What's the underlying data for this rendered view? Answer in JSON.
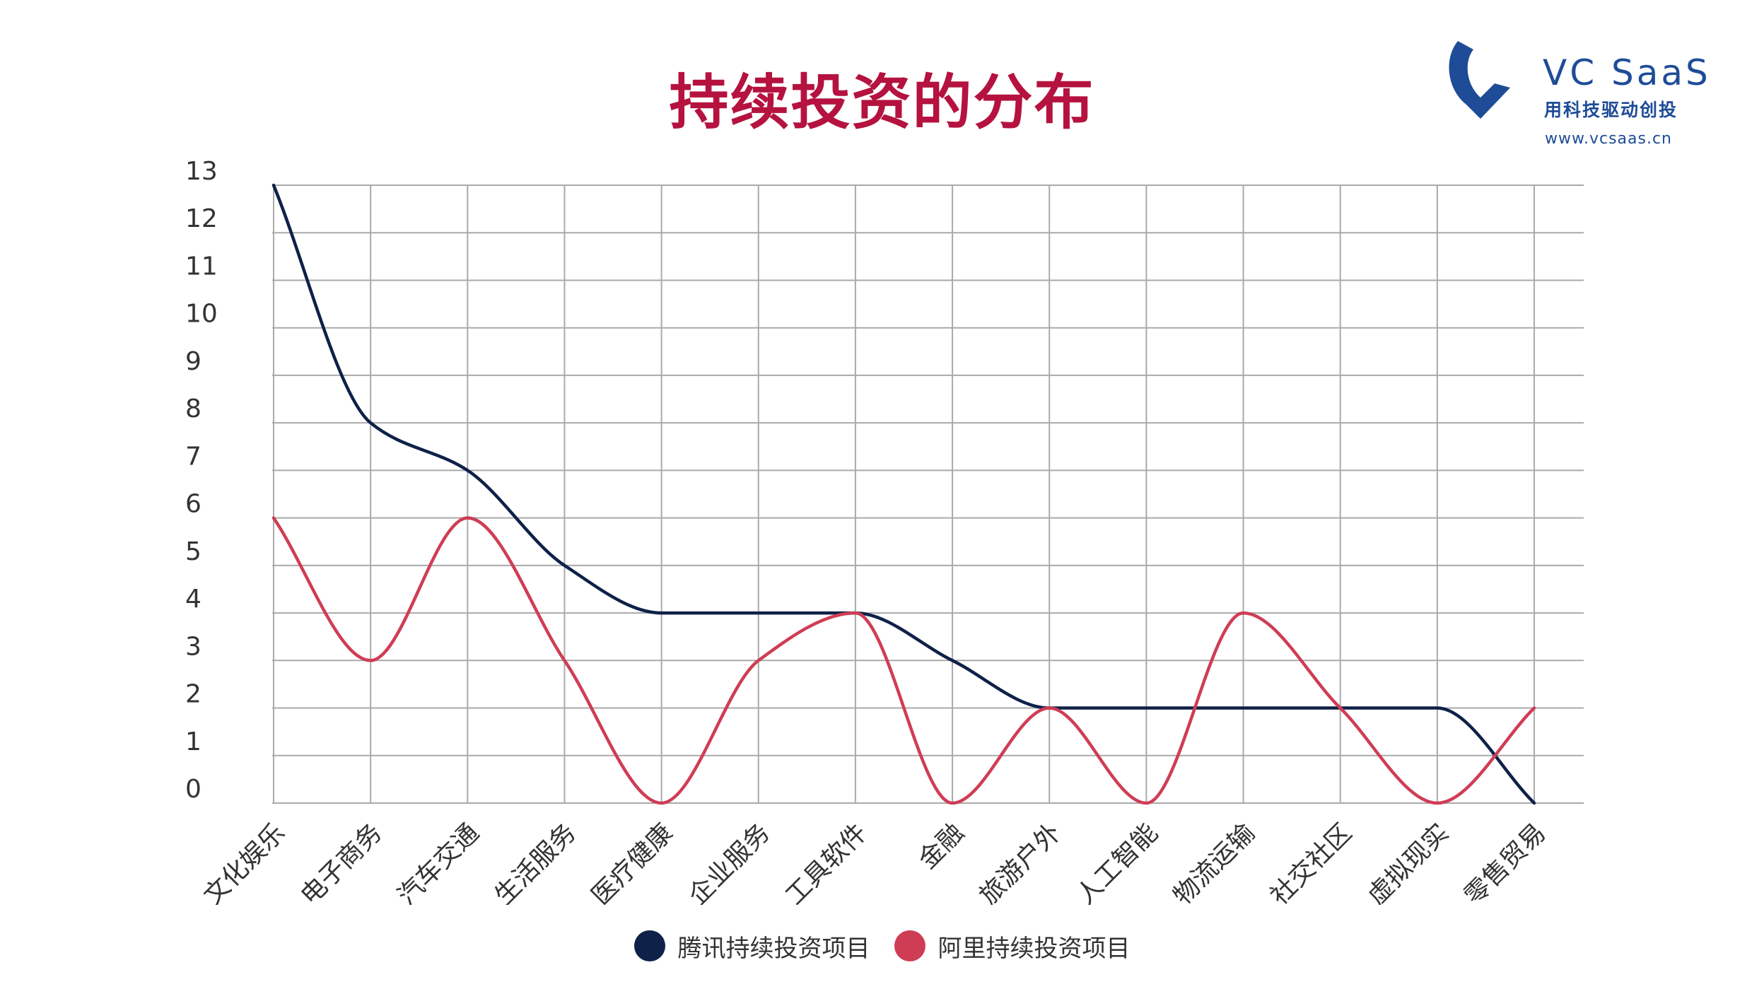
{
  "page": {
    "title": "持续投资的分布"
  },
  "logo": {
    "name": "VC SaaS",
    "slogan": "用科技驱动创投",
    "url": "www.vcsaas.cn",
    "color": "#1e4c97"
  },
  "chart_data": {
    "type": "line",
    "categories": [
      "文化娱乐",
      "电子商务",
      "汽车交通",
      "生活服务",
      "医疗健康",
      "企业服务",
      "工具软件",
      "金融",
      "旅游户外",
      "人工智能",
      "物流运输",
      "社交社区",
      "虚拟现实",
      "零售贸易"
    ],
    "series": [
      {
        "name": "腾讯持续投资项目",
        "values": [
          13,
          8,
          7,
          5,
          4,
          4,
          4,
          3,
          2,
          2,
          2,
          2,
          2,
          0
        ],
        "color": "#0e2148"
      },
      {
        "name": "阿里持续投资项目",
        "values": [
          6,
          3,
          6,
          3,
          0,
          3,
          4,
          0,
          2,
          0,
          4,
          2,
          0,
          2
        ],
        "color": "#cf3d55"
      }
    ],
    "yticks": [
      0,
      1,
      2,
      3,
      4,
      5,
      6,
      7,
      8,
      9,
      10,
      11,
      12,
      13
    ],
    "ylim": [
      0,
      13
    ],
    "grid": true,
    "legend": "bottom-center",
    "smooth": true
  }
}
